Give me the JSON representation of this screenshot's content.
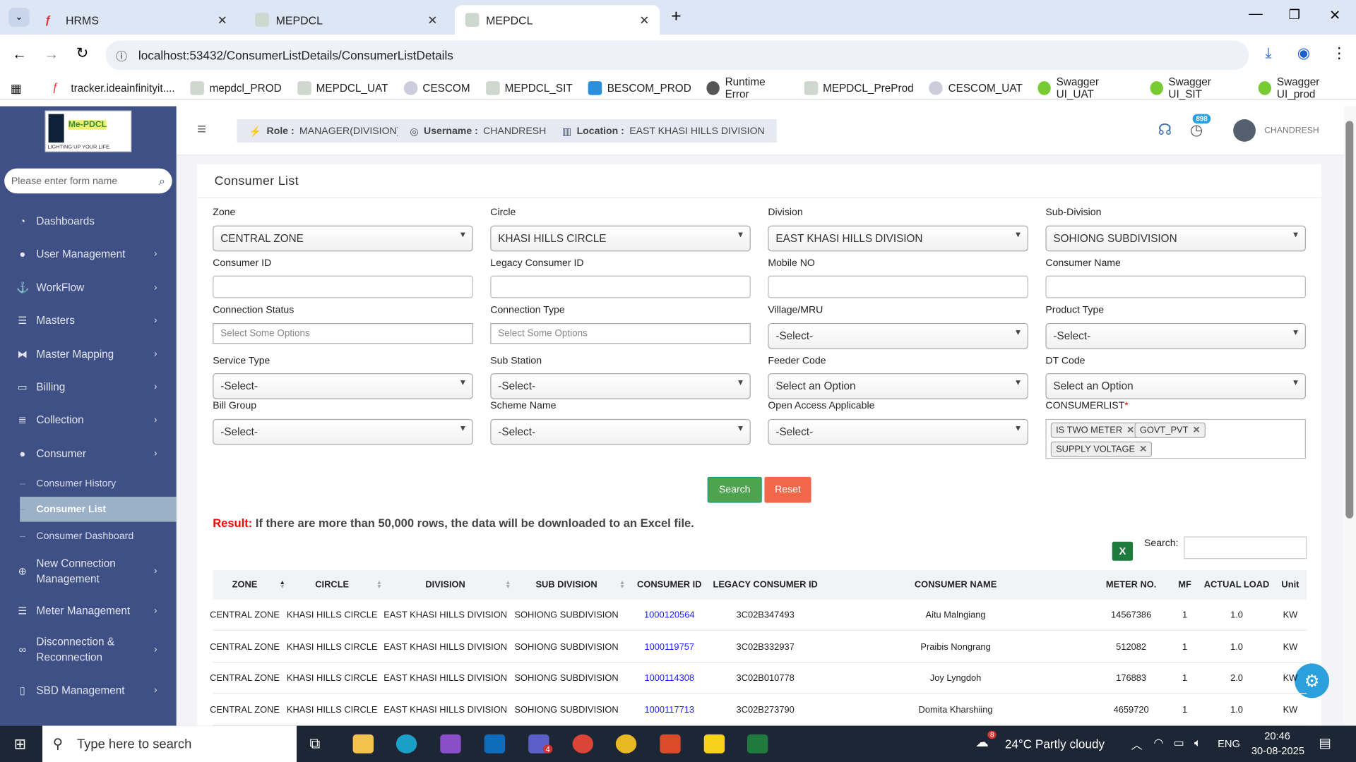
{
  "browser": {
    "tabs": [
      {
        "label": "HRMS"
      },
      {
        "label": "MEPDCL"
      },
      {
        "label": "MEPDCL",
        "active": true
      }
    ],
    "url": "localhost:53432/ConsumerListDetails/ConsumerListDetails",
    "bookmarks": [
      "tracker.ideainfinityit....",
      "mepdcl_PROD",
      "MEPDCL_UAT",
      "CESCOM",
      "MEPDCL_SIT",
      "BESCOM_PROD",
      "Runtime Error",
      "MEPDCL_PreProd",
      "CESCOM_UAT",
      "Swagger UI_UAT",
      "Swagger UI_SIT",
      "Swagger UI_prod"
    ]
  },
  "logo": {
    "text": "Me-PDCL",
    "tagline": "LIGHTING UP YOUR LIFE"
  },
  "sidebar": {
    "search_placeholder": "Please enter form name",
    "items": [
      {
        "label": "Dashboards",
        "icon": "gauge-icon"
      },
      {
        "label": "User Management",
        "icon": "user-icon"
      },
      {
        "label": "WorkFlow",
        "icon": "anchor-icon"
      },
      {
        "label": "Masters",
        "icon": "server-icon"
      },
      {
        "label": "Master Mapping",
        "icon": "sitemap-icon"
      },
      {
        "label": "Billing",
        "icon": "desktop-icon"
      },
      {
        "label": "Collection",
        "icon": "list-ol-icon"
      },
      {
        "label": "Consumer",
        "icon": "user-icon"
      }
    ],
    "consumer_sub": [
      {
        "label": "Consumer History"
      },
      {
        "label": "Consumer List",
        "active": true
      },
      {
        "label": "Consumer Dashboard"
      }
    ],
    "items2": [
      {
        "label": "New Connection Management",
        "icon": "plus-circle-icon"
      },
      {
        "label": "Meter Management",
        "icon": "list-icon"
      },
      {
        "label": "Disconnection & Reconnection",
        "icon": "link-icon"
      },
      {
        "label": "SBD Management",
        "icon": "tablet-icon"
      }
    ]
  },
  "header": {
    "role_label": "Role :",
    "role": "MANAGER(DIVISION)",
    "username_label": "Username :",
    "username": "CHANDRESH",
    "location_label": "Location :",
    "location": "EAST KHASI HILLS DIVISION",
    "notif_count": "898",
    "user": "CHANDRESH"
  },
  "page": {
    "title": "Consumer List",
    "fields": {
      "zone": {
        "label": "Zone",
        "value": "CENTRAL ZONE"
      },
      "circle": {
        "label": "Circle",
        "value": "KHASI HILLS CIRCLE"
      },
      "division": {
        "label": "Division",
        "value": "EAST KHASI HILLS DIVISION"
      },
      "subdivision": {
        "label": "Sub-Division",
        "value": "SOHIONG SUBDIVISION"
      },
      "consumer_id": {
        "label": "Consumer ID",
        "value": ""
      },
      "legacy_id": {
        "label": "Legacy Consumer ID",
        "value": ""
      },
      "mobile": {
        "label": "Mobile NO",
        "value": ""
      },
      "consumer_name": {
        "label": "Consumer Name",
        "value": ""
      },
      "conn_status": {
        "label": "Connection Status",
        "placeholder": "Select Some Options"
      },
      "conn_type": {
        "label": "Connection Type",
        "placeholder": "Select Some Options"
      },
      "village": {
        "label": "Village/MRU",
        "value": "-Select-"
      },
      "product": {
        "label": "Product Type",
        "value": "-Select-"
      },
      "service": {
        "label": "Service Type",
        "value": "-Select-"
      },
      "substation": {
        "label": "Sub Station",
        "value": "-Select-"
      },
      "feeder": {
        "label": "Feeder Code",
        "value": "Select an Option"
      },
      "dt": {
        "label": "DT Code",
        "value": "Select an Option"
      },
      "bill_group": {
        "label": "Bill Group",
        "value": "-Select-"
      },
      "scheme": {
        "label": "Scheme Name",
        "value": "-Select-"
      },
      "open_access": {
        "label": "Open Access Applicable",
        "value": "-Select-"
      },
      "consumerlist": {
        "label": "CONSUMERLIST",
        "required": "*",
        "tags": [
          "IS TWO METER",
          "GOVT_PVT",
          "SUPPLY VOLTAGE"
        ]
      }
    },
    "search_button": "Search",
    "reset_button": "Reset",
    "result_label": "Result:",
    "result_text": " If there are more than 50,000 rows, the data will be downloaded to an Excel file.",
    "table_search_label": "Search:",
    "table_search_value": ""
  },
  "table": {
    "columns": [
      "ZONE",
      "CIRCLE",
      "DIVISION",
      "SUB DIVISION",
      "CONSUMER ID",
      "LEGACY CONSUMER ID",
      "CONSUMER NAME",
      "METER NO.",
      "MF",
      "ACTUAL LOAD",
      "Unit"
    ],
    "rows": [
      [
        "CENTRAL ZONE",
        "KHASI HILLS CIRCLE",
        "EAST KHASI HILLS DIVISION",
        "SOHIONG SUBDIVISION",
        "1000120564",
        "3C02B347493",
        "Aitu Malngiang",
        "14567386",
        "1",
        "1.0",
        "KW"
      ],
      [
        "CENTRAL ZONE",
        "KHASI HILLS CIRCLE",
        "EAST KHASI HILLS DIVISION",
        "SOHIONG SUBDIVISION",
        "1000119757",
        "3C02B332937",
        "Praibis Nongrang",
        "512082",
        "1",
        "1.0",
        "KW"
      ],
      [
        "CENTRAL ZONE",
        "KHASI HILLS CIRCLE",
        "EAST KHASI HILLS DIVISION",
        "SOHIONG SUBDIVISION",
        "1000114308",
        "3C02B010778",
        "Joy Lyngdoh",
        "176883",
        "1",
        "2.0",
        "KW"
      ],
      [
        "CENTRAL ZONE",
        "KHASI HILLS CIRCLE",
        "EAST KHASI HILLS DIVISION",
        "SOHIONG SUBDIVISION",
        "1000117713",
        "3C02B273790",
        "Domita Kharshiing",
        "4659720",
        "1",
        "1.0",
        "KW"
      ]
    ]
  },
  "taskbar": {
    "search_placeholder": "Type here to search",
    "weather": "24°C  Partly cloudy",
    "lang": "ENG",
    "time": "20:46",
    "date": "30-08-2025",
    "teams_badge": "4",
    "weather_badge": "8"
  },
  "colors": {
    "sidebar": "#3f5087",
    "search_btn": "#4ea44e",
    "reset_btn": "#f0674a",
    "link": "#1a1aff",
    "result_label": "#ff0000"
  }
}
